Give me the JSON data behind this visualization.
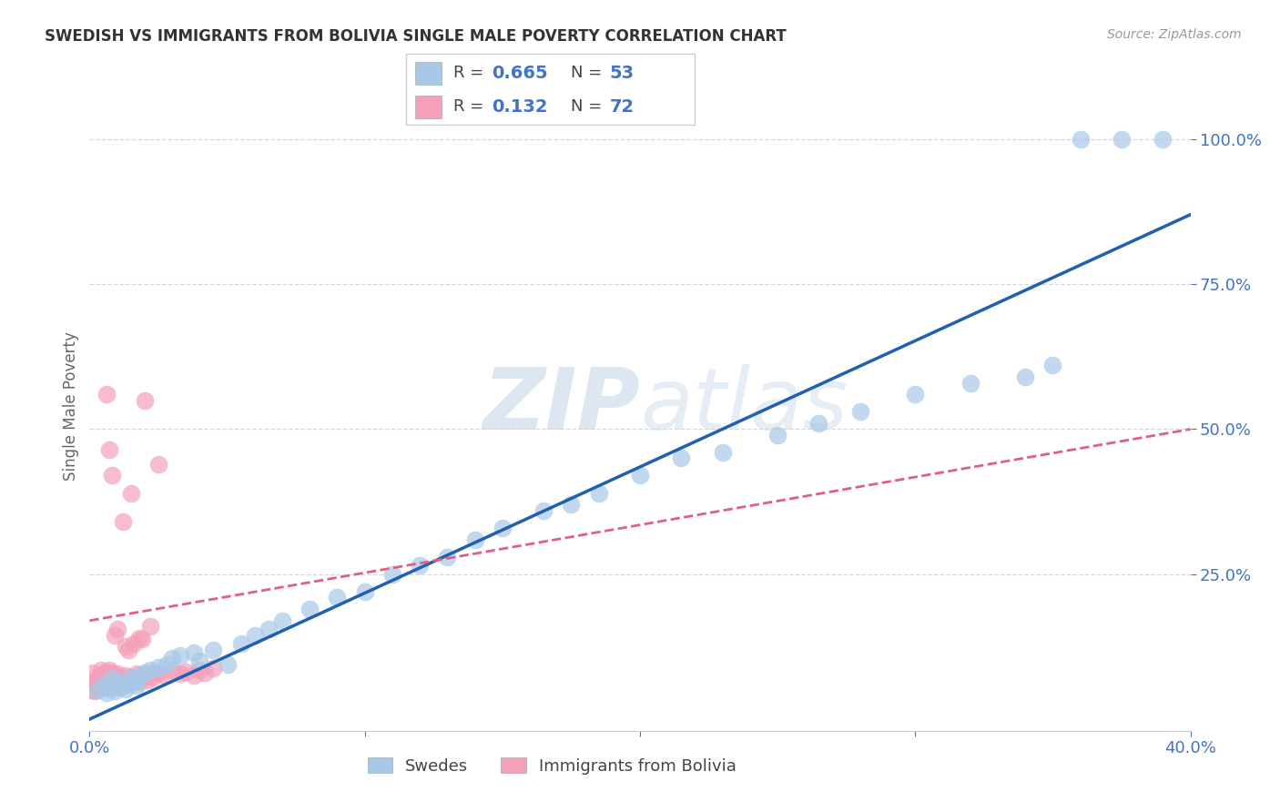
{
  "title": "SWEDISH VS IMMIGRANTS FROM BOLIVIA SINGLE MALE POVERTY CORRELATION CHART",
  "source": "Source: ZipAtlas.com",
  "ylabel": "Single Male Poverty",
  "legend_r1_val": "0.665",
  "legend_n1_val": "53",
  "legend_r2_val": "0.132",
  "legend_n2_val": "72",
  "legend_label_1": "Swedes",
  "legend_label_2": "Immigrants from Bolivia",
  "xlim": [
    0.0,
    0.4
  ],
  "ylim": [
    -0.02,
    1.1
  ],
  "xtick_vals": [
    0.0,
    0.1,
    0.2,
    0.3,
    0.4
  ],
  "xtick_labels": [
    "0.0%",
    "",
    "",
    "",
    "40.0%"
  ],
  "ytick_vals": [
    0.25,
    0.5,
    0.75,
    1.0
  ],
  "ytick_labels": [
    "25.0%",
    "50.0%",
    "75.0%",
    "100.0%"
  ],
  "blue_color": "#a8c8e8",
  "pink_color": "#f4a0b8",
  "blue_line_color": "#2060b0",
  "pink_line_color": "#e06080",
  "grid_color": "#d0d8e8",
  "watermark_color": "#c8d8e8",
  "bg_color": "#ffffff",
  "swedes_x": [
    0.003,
    0.005,
    0.006,
    0.007,
    0.008,
    0.009,
    0.01,
    0.011,
    0.012,
    0.013,
    0.014,
    0.015,
    0.016,
    0.017,
    0.018,
    0.02,
    0.022,
    0.025,
    0.028,
    0.03,
    0.033,
    0.038,
    0.04,
    0.045,
    0.05,
    0.055,
    0.06,
    0.065,
    0.07,
    0.08,
    0.09,
    0.1,
    0.11,
    0.12,
    0.13,
    0.14,
    0.15,
    0.165,
    0.175,
    0.185,
    0.2,
    0.215,
    0.23,
    0.25,
    0.265,
    0.28,
    0.3,
    0.32,
    0.34,
    0.35,
    0.36,
    0.375,
    0.39
  ],
  "swedes_y": [
    0.05,
    0.06,
    0.045,
    0.055,
    0.07,
    0.048,
    0.065,
    0.055,
    0.058,
    0.052,
    0.06,
    0.072,
    0.065,
    0.058,
    0.075,
    0.08,
    0.085,
    0.09,
    0.095,
    0.105,
    0.11,
    0.115,
    0.1,
    0.12,
    0.095,
    0.13,
    0.145,
    0.155,
    0.17,
    0.19,
    0.21,
    0.22,
    0.25,
    0.265,
    0.28,
    0.31,
    0.33,
    0.36,
    0.37,
    0.39,
    0.42,
    0.45,
    0.46,
    0.49,
    0.51,
    0.53,
    0.56,
    0.58,
    0.59,
    0.61,
    1.0,
    1.0,
    1.0
  ],
  "bolivia_x": [
    0.001,
    0.001,
    0.002,
    0.002,
    0.002,
    0.003,
    0.003,
    0.003,
    0.004,
    0.004,
    0.004,
    0.004,
    0.005,
    0.005,
    0.005,
    0.005,
    0.006,
    0.006,
    0.006,
    0.007,
    0.007,
    0.007,
    0.007,
    0.008,
    0.008,
    0.008,
    0.009,
    0.009,
    0.009,
    0.01,
    0.01,
    0.01,
    0.011,
    0.011,
    0.012,
    0.012,
    0.013,
    0.013,
    0.014,
    0.015,
    0.016,
    0.017,
    0.018,
    0.019,
    0.02,
    0.021,
    0.022,
    0.023,
    0.025,
    0.027,
    0.03,
    0.033,
    0.035,
    0.038,
    0.04,
    0.042,
    0.045,
    0.02,
    0.025,
    0.015,
    0.008,
    0.012,
    0.006,
    0.018,
    0.014,
    0.01,
    0.022,
    0.016,
    0.009,
    0.013,
    0.019,
    0.007
  ],
  "bolivia_y": [
    0.05,
    0.08,
    0.055,
    0.065,
    0.048,
    0.06,
    0.07,
    0.052,
    0.058,
    0.075,
    0.065,
    0.085,
    0.055,
    0.068,
    0.078,
    0.06,
    0.055,
    0.072,
    0.082,
    0.058,
    0.068,
    0.075,
    0.085,
    0.062,
    0.072,
    0.08,
    0.065,
    0.075,
    0.06,
    0.068,
    0.078,
    0.055,
    0.065,
    0.072,
    0.058,
    0.068,
    0.062,
    0.075,
    0.065,
    0.072,
    0.068,
    0.078,
    0.065,
    0.072,
    0.075,
    0.068,
    0.078,
    0.072,
    0.08,
    0.075,
    0.085,
    0.078,
    0.082,
    0.075,
    0.085,
    0.08,
    0.088,
    0.55,
    0.44,
    0.39,
    0.42,
    0.34,
    0.56,
    0.14,
    0.12,
    0.155,
    0.16,
    0.13,
    0.145,
    0.125,
    0.138,
    0.465
  ]
}
